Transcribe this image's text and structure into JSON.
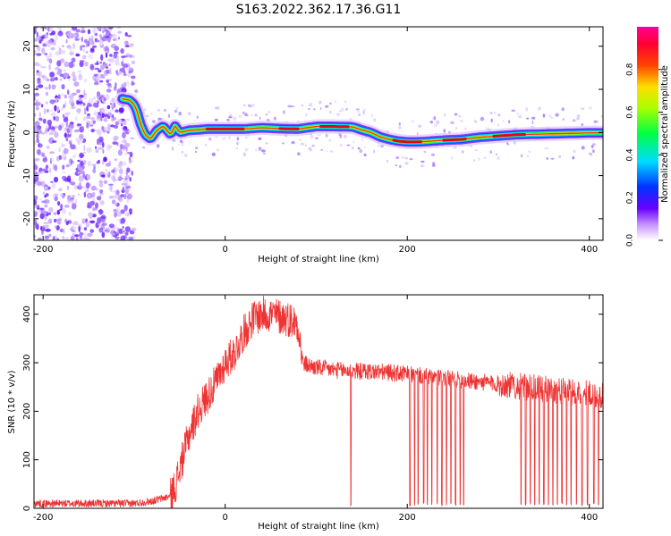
{
  "title": "S163.2022.362.17.36.G11",
  "chart_data": [
    {
      "type": "heatmap",
      "xlabel": "Height of straight line (km)",
      "ylabel": "Frequency (Hz)",
      "xlim": [
        -210,
        415
      ],
      "ylim": [
        -25,
        24.5
      ],
      "xticks": [
        -200,
        0,
        200,
        400
      ],
      "yticks": [
        -20,
        -10,
        0,
        10,
        20
      ],
      "colorbar": {
        "label": "Normalized spectral amplitude",
        "ticks": [
          "0.0",
          "0.2",
          "0.4",
          "0.6",
          "0.8"
        ],
        "range": [
          0,
          1
        ]
      },
      "ridge": {
        "x": [
          -113,
          -105,
          -100,
          -97,
          -93,
          -88,
          -82,
          -75,
          -68,
          -60,
          -55,
          -50,
          -45,
          -40,
          -30,
          -20,
          -10,
          0,
          20,
          40,
          60,
          80,
          100,
          120,
          140,
          150,
          160,
          170,
          180,
          190,
          200,
          210,
          220,
          240,
          260,
          280,
          300,
          320,
          340,
          360,
          380,
          400,
          415
        ],
        "y": [
          7.8,
          7.5,
          6.5,
          5,
          2,
          -0.5,
          -1.5,
          0.5,
          1.5,
          -0.5,
          1.5,
          0,
          0.2,
          0.5,
          0.6,
          0.8,
          0.8,
          0.8,
          0.8,
          1.1,
          0.9,
          0.8,
          1.4,
          1.4,
          1.3,
          0.6,
          0,
          -1,
          -1.6,
          -2,
          -2.2,
          -2.2,
          -2.1,
          -1.8,
          -1.6,
          -1.1,
          -0.8,
          -0.5,
          -0.4,
          -0.3,
          -0.2,
          -0.1,
          -0.1
        ]
      },
      "noise_x_range": [
        -210,
        -100
      ]
    },
    {
      "type": "line",
      "xlabel": "Height of straight line (km)",
      "ylabel": "SNR (10 * v/v)",
      "xlim": [
        -210,
        415
      ],
      "ylim": [
        0,
        440
      ],
      "xticks": [
        -200,
        0,
        200,
        400
      ],
      "yticks": [
        0,
        100,
        200,
        300,
        400
      ],
      "series": [
        {
          "color": "#ee3333",
          "x": [
            -210,
            -150,
            -100,
            -80,
            -60,
            -55,
            -50,
            -40,
            -30,
            -20,
            -10,
            0,
            10,
            20,
            30,
            40,
            50,
            60,
            70,
            80,
            85,
            90,
            100,
            120,
            140,
            160,
            180,
            200,
            220,
            240,
            260,
            280,
            300,
            320,
            340,
            360,
            380,
            400,
            415
          ],
          "y": [
            10,
            10,
            10,
            15,
            25,
            45,
            80,
            150,
            200,
            230,
            260,
            300,
            320,
            360,
            390,
            400,
            400,
            395,
            390,
            380,
            300,
            295,
            290,
            285,
            283,
            282,
            280,
            276,
            272,
            268,
            264,
            260,
            256,
            252,
            248,
            244,
            240,
            236,
            230
          ],
          "dropouts": [
            138,
            203,
            208,
            212,
            218,
            222,
            227,
            233,
            238,
            243,
            248,
            253,
            258,
            262,
            325,
            330,
            335,
            340,
            345,
            350,
            355,
            360,
            365,
            370,
            375,
            380,
            386,
            392,
            398,
            405,
            410
          ]
        }
      ]
    }
  ]
}
